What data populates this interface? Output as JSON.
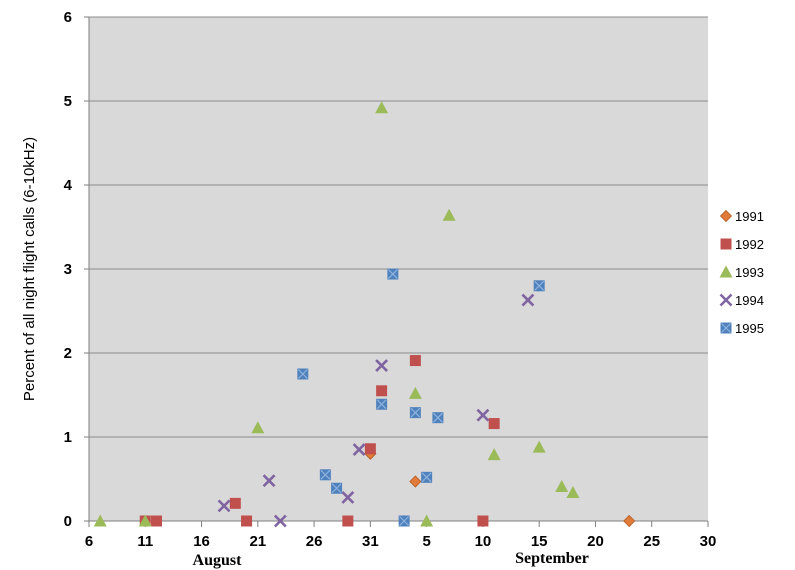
{
  "chart_data": {
    "type": "scatter",
    "title": "",
    "ylabel": "Percent of all night flight calls (6-10kHz)",
    "xlabel": "",
    "ylim": [
      0,
      6
    ],
    "yticks": [
      "0",
      "1",
      "2",
      "3",
      "4",
      "5",
      "6"
    ],
    "xticks": [
      "6",
      "11",
      "16",
      "21",
      "26",
      "31",
      "5",
      "10",
      "15",
      "20",
      "25",
      "30"
    ],
    "month_labels": [
      "August",
      "September"
    ],
    "x_note": "x = day index where August 6 = 6 ... August 31 = 31, September 5 = 36, September 30 = 61",
    "xlim": [
      6,
      61
    ],
    "grid": "horizontal",
    "legend_position": "right",
    "colors": {
      "plot_bg": "#d9d9d9",
      "grid": "#8c8c8c",
      "1991": "#e07b39",
      "1992": "#c0504d",
      "1993": "#9bbb59",
      "1994": "#8064a2",
      "1995": "#4f81bd"
    },
    "series": [
      {
        "name": "1991",
        "marker": "diamond",
        "points": [
          [
            31,
            0.8
          ],
          [
            35,
            0.47
          ],
          [
            54,
            0
          ]
        ]
      },
      {
        "name": "1992",
        "marker": "square",
        "points": [
          [
            11,
            0
          ],
          [
            12,
            0
          ],
          [
            19,
            0.21
          ],
          [
            20,
            0
          ],
          [
            29,
            0
          ],
          [
            31,
            0.86
          ],
          [
            32,
            1.55
          ],
          [
            35,
            1.91
          ],
          [
            41,
            0
          ],
          [
            42,
            1.16
          ]
        ]
      },
      {
        "name": "1993",
        "marker": "triangle",
        "points": [
          [
            7,
            0
          ],
          [
            11,
            0
          ],
          [
            21,
            1.11
          ],
          [
            32,
            4.92
          ],
          [
            35,
            1.52
          ],
          [
            36,
            0
          ],
          [
            38,
            3.64
          ],
          [
            42,
            0.79
          ],
          [
            46,
            0.88
          ],
          [
            48,
            0.41
          ],
          [
            49,
            0.34
          ]
        ]
      },
      {
        "name": "1994",
        "marker": "x",
        "points": [
          [
            18,
            0.18
          ],
          [
            22,
            0.48
          ],
          [
            23,
            0
          ],
          [
            29,
            0.28
          ],
          [
            30,
            0.85
          ],
          [
            32,
            1.85
          ],
          [
            41,
            1.26
          ],
          [
            45,
            2.63
          ]
        ]
      },
      {
        "name": "1995",
        "marker": "square-x",
        "points": [
          [
            25,
            1.75
          ],
          [
            27,
            0.55
          ],
          [
            28,
            0.39
          ],
          [
            32,
            1.39
          ],
          [
            33,
            2.94
          ],
          [
            34,
            0
          ],
          [
            35,
            1.29
          ],
          [
            36,
            0.52
          ],
          [
            37,
            1.23
          ],
          [
            46,
            2.8
          ]
        ]
      }
    ]
  }
}
